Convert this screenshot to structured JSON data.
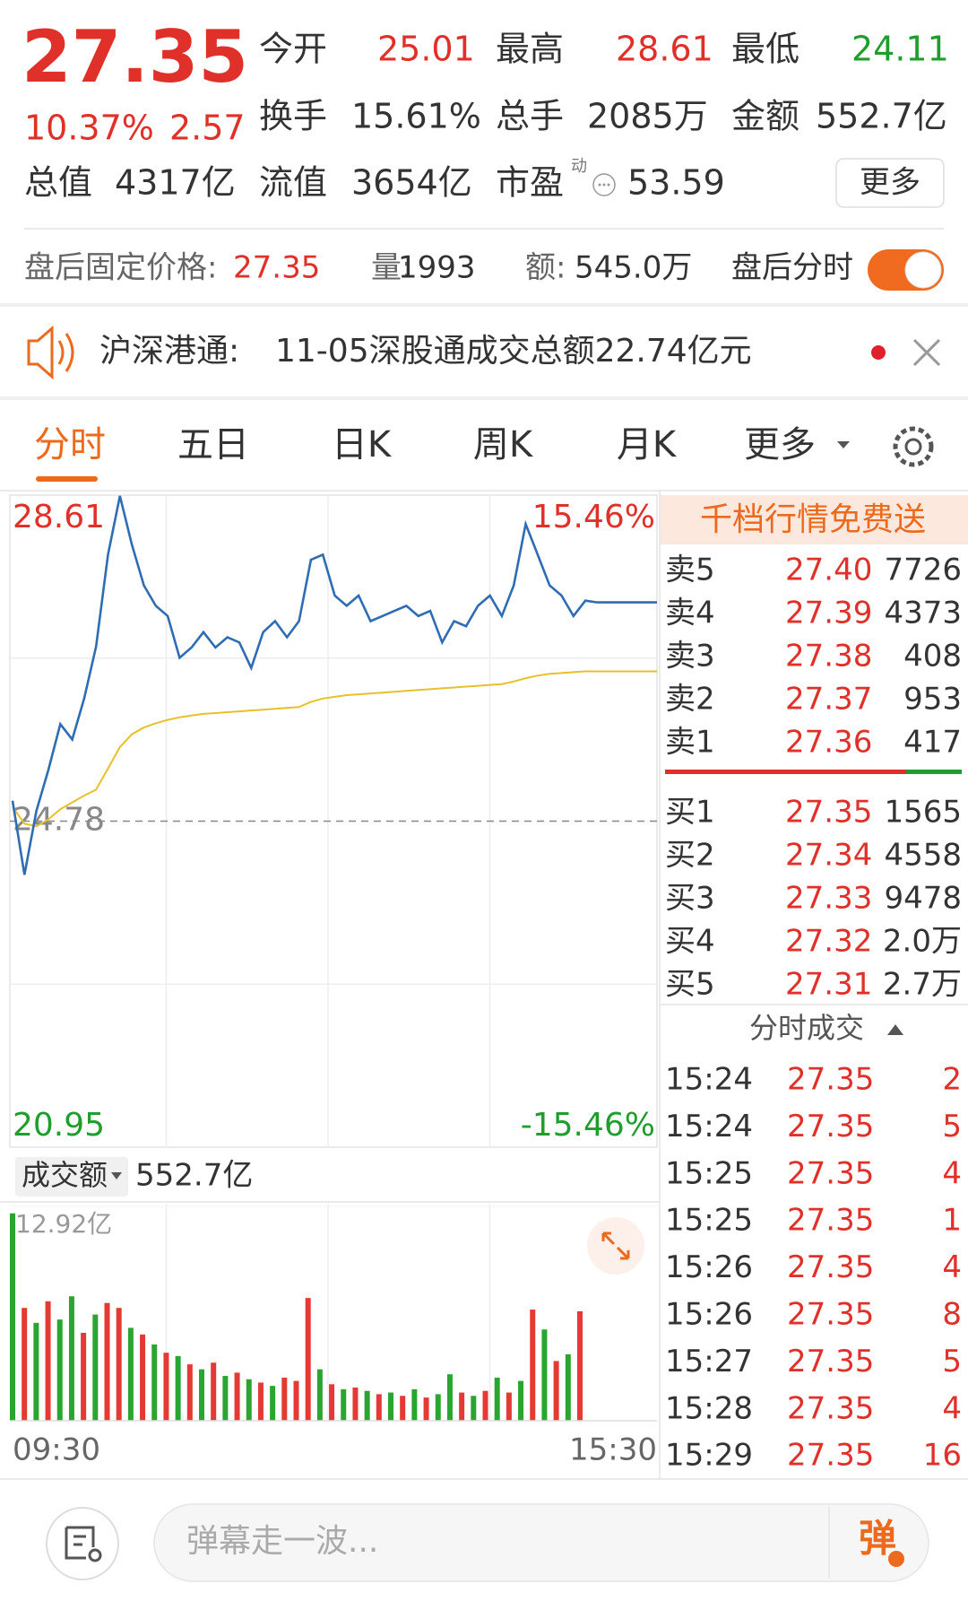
{
  "quote": {
    "price": "27.35",
    "change_pct": "10.37%",
    "change": "2.57",
    "pe_tag": "动",
    "more": "更多",
    "stats": [
      {
        "label": "今开",
        "value": "25.01"
      },
      {
        "label": "最高",
        "value": "28.61"
      },
      {
        "label": "最低",
        "value": "24.11"
      },
      {
        "label": "换手",
        "value": "15.61%"
      },
      {
        "label": "总手",
        "value": "2085万"
      },
      {
        "label": "金额",
        "value": "552.7亿"
      },
      {
        "label": "总值",
        "value": "4317亿"
      },
      {
        "label": "流值",
        "value": "3654亿"
      },
      {
        "label": "市盈",
        "value": "53.59"
      }
    ]
  },
  "after_hours": {
    "label": "盘后固定价格:",
    "price": "27.35",
    "volume_label": "量:",
    "volume": "1993",
    "amount_label": "额:",
    "amount": "545.0万",
    "toggle_label": "盘后分时"
  },
  "notice": {
    "source": "沪深港通:",
    "text": "11-05深股通成交总额22.74亿元"
  },
  "tabs": [
    "分时",
    "五日",
    "日K",
    "周K",
    "月K",
    "更多"
  ],
  "chart_data": [
    {
      "type": "line",
      "categories": [
        "09:30",
        null,
        null,
        null,
        null,
        null,
        null,
        null,
        null,
        null,
        null,
        null,
        null,
        null,
        null,
        null,
        null,
        null,
        null,
        null,
        null,
        null,
        null,
        null,
        null,
        null,
        null,
        null,
        null,
        null,
        null,
        null,
        null,
        null,
        null,
        null,
        null,
        null,
        null,
        null,
        null,
        null,
        null,
        null,
        null,
        null,
        null,
        null,
        null,
        null,
        null,
        null,
        null,
        null,
        "15:30"
      ],
      "series": [
        {
          "color": "#2f6cb3",
          "values": [
            25.02,
            24.15,
            24.9,
            25.38,
            25.92,
            25.74,
            26.22,
            26.83,
            27.91,
            28.6,
            28.03,
            27.55,
            27.31,
            27.19,
            26.7,
            26.82,
            27.0,
            26.82,
            26.94,
            26.88,
            26.58,
            27.0,
            27.13,
            26.94,
            27.13,
            27.85,
            27.91,
            27.43,
            27.31,
            27.43,
            27.13,
            27.19,
            27.25,
            27.31,
            27.19,
            27.25,
            26.88,
            27.13,
            27.07,
            27.31,
            27.43,
            27.19,
            27.55,
            28.27,
            27.91,
            27.55,
            27.43,
            27.19,
            27.37,
            27.35,
            27.35,
            27.35,
            27.35,
            27.35,
            27.35
          ]
        },
        {
          "color": "#e8c02a",
          "values": [
            24.95,
            24.75,
            24.72,
            24.8,
            24.92,
            25.0,
            25.08,
            25.15,
            25.4,
            25.65,
            25.8,
            25.88,
            25.93,
            25.97,
            26.0,
            26.02,
            26.04,
            26.05,
            26.06,
            26.07,
            26.08,
            26.09,
            26.1,
            26.11,
            26.12,
            26.18,
            26.22,
            26.24,
            26.26,
            26.27,
            26.28,
            26.29,
            26.3,
            26.31,
            26.32,
            26.33,
            26.34,
            26.35,
            26.36,
            26.37,
            26.38,
            26.39,
            26.42,
            26.46,
            26.49,
            26.51,
            26.52,
            26.53,
            26.54,
            26.54,
            26.54,
            26.54,
            26.54,
            26.54,
            26.54
          ]
        }
      ],
      "ylim": [
        20.95,
        28.61
      ],
      "yticks": [
        20.95,
        24.78,
        28.61
      ],
      "y2lim": [
        -15.46,
        15.46
      ],
      "y2ticks": [
        {
          "value": 15.46,
          "label": "15.46%"
        },
        {
          "value": -15.46,
          "label": "-15.46%"
        }
      ]
    },
    {
      "type": "bar",
      "title": "成交额",
      "subtitle": "552.7亿",
      "values": [
        12.5,
        6.8,
        5.9,
        7.2,
        6.1,
        7.5,
        5.3,
        6.4,
        7.1,
        6.8,
        5.6,
        5.2,
        4.6,
        4.1,
        3.9,
        3.4,
        3.1,
        3.5,
        2.7,
        2.9,
        2.5,
        2.3,
        2.1,
        2.6,
        2.4,
        7.4,
        3.1,
        2.2,
        1.9,
        2.0,
        1.8,
        1.6,
        1.7,
        1.5,
        1.9,
        1.4,
        1.6,
        2.8,
        1.7,
        1.5,
        1.8,
        2.6,
        1.7,
        2.4,
        6.7,
        5.5,
        3.6,
        4.0,
        6.6
      ],
      "colors": [
        "#2aa531",
        "#e53935",
        "#2aa531",
        "#e53935",
        "#2aa531",
        "#2aa531",
        "#e53935",
        "#2aa531",
        "#e53935",
        "#e53935",
        "#2aa531",
        "#e53935",
        "#2aa531",
        "#e53935",
        "#2aa531",
        "#e53935",
        "#2aa531",
        "#e53935",
        "#2aa531",
        "#e53935",
        "#2aa531",
        "#e53935",
        "#2aa531",
        "#e53935",
        "#e53935",
        "#e53935",
        "#2aa531",
        "#e53935",
        "#2aa531",
        "#e53935",
        "#2aa531",
        "#e53935",
        "#2aa531",
        "#e53935",
        "#2aa531",
        "#e53935",
        "#2aa531",
        "#2aa531",
        "#e53935",
        "#2aa531",
        "#e53935",
        "#2aa531",
        "#e53935",
        "#2aa531",
        "#e53935",
        "#2aa531",
        "#e53935",
        "#2aa531",
        "#e53935"
      ],
      "ylim": [
        0,
        12.92
      ],
      "yticks": [
        {
          "value": 12.92,
          "label": "12.92亿"
        }
      ]
    }
  ],
  "order_book": {
    "banner": "千档行情免费送",
    "asks": [
      {
        "label": "卖5",
        "price": "27.40",
        "volume": "7726"
      },
      {
        "label": "卖4",
        "price": "27.39",
        "volume": "4373"
      },
      {
        "label": "卖3",
        "price": "27.38",
        "volume": "408"
      },
      {
        "label": "卖2",
        "price": "27.37",
        "volume": "953"
      },
      {
        "label": "卖1",
        "price": "27.36",
        "volume": "417"
      }
    ],
    "bids": [
      {
        "label": "买1",
        "price": "27.35",
        "volume": "1565"
      },
      {
        "label": "买2",
        "price": "27.34",
        "volume": "4558"
      },
      {
        "label": "买3",
        "price": "27.33",
        "volume": "9478"
      },
      {
        "label": "买4",
        "price": "27.32",
        "volume": "2.0万"
      },
      {
        "label": "买5",
        "price": "27.31",
        "volume": "2.7万"
      }
    ]
  },
  "trades": {
    "title": "分时成交",
    "rows": [
      [
        "15:24",
        "27.35",
        "2"
      ],
      [
        "15:24",
        "27.35",
        "5"
      ],
      [
        "15:25",
        "27.35",
        "4"
      ],
      [
        "15:25",
        "27.35",
        "1"
      ],
      [
        "15:26",
        "27.35",
        "4"
      ],
      [
        "15:26",
        "27.35",
        "8"
      ],
      [
        "15:27",
        "27.35",
        "5"
      ],
      [
        "15:28",
        "27.35",
        "4"
      ],
      [
        "15:29",
        "27.35",
        "16"
      ]
    ]
  },
  "footer": {
    "placeholder": "弹幕走一波...",
    "button": "弹"
  }
}
